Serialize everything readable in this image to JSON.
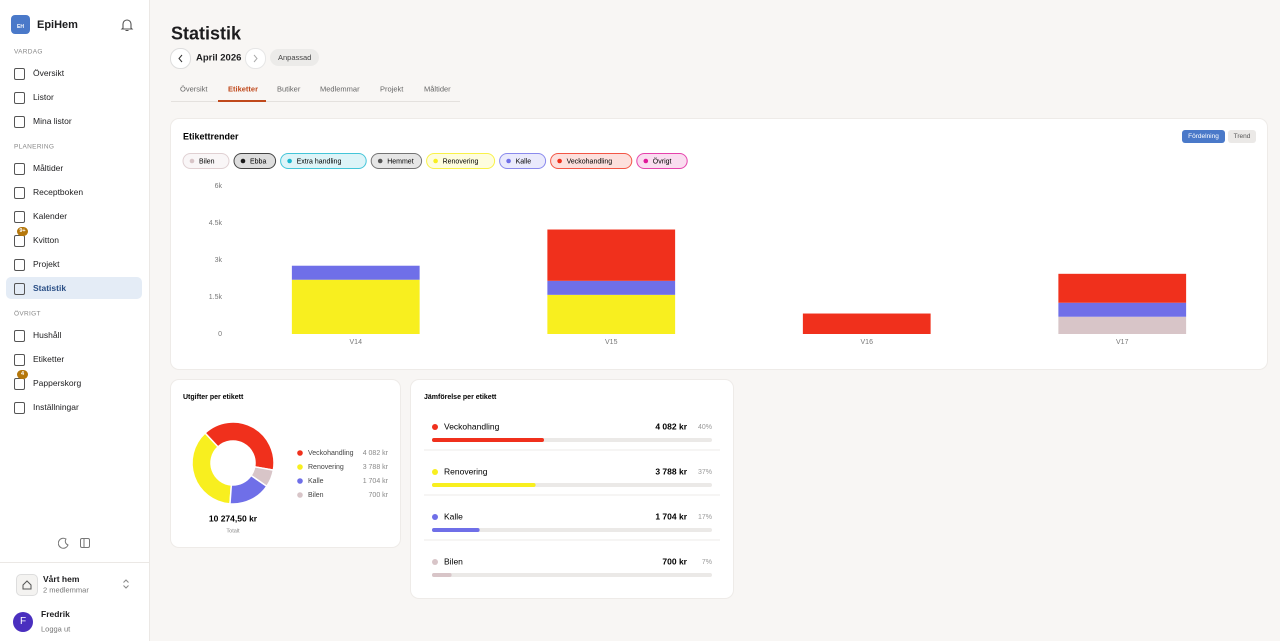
{
  "sidebar": {
    "logo": "EH",
    "app_name": "EpiHem",
    "sections": [
      {
        "title": "VARDAG",
        "items": [
          {
            "label": "Översikt"
          },
          {
            "label": "Listor"
          },
          {
            "label": "Mina listor"
          }
        ]
      },
      {
        "title": "PLANERING",
        "items": [
          {
            "label": "Måltider"
          },
          {
            "label": "Receptboken"
          },
          {
            "label": "Kalender"
          },
          {
            "label": "Kvitton",
            "badge": "9+"
          },
          {
            "label": "Projekt"
          },
          {
            "label": "Statistik",
            "active": true
          }
        ]
      },
      {
        "title": "ÖVRIGT",
        "items": [
          {
            "label": "Hushåll"
          },
          {
            "label": "Etiketter"
          },
          {
            "label": "Papperskorg",
            "badge": "4"
          },
          {
            "label": "Inställningar"
          }
        ]
      }
    ],
    "household": {
      "name": "Vårt hem",
      "members": "2 medlemmar"
    },
    "user": {
      "initial": "F",
      "name": "Fredrik",
      "logout": "Logga ut"
    }
  },
  "header": {
    "title": "Statistik",
    "period": "April 2026",
    "custom": "Anpassad"
  },
  "tabs": {
    "items": [
      "Översikt",
      "Etiketter",
      "Butiker",
      "Medlemmar",
      "Projekt",
      "Måltider"
    ],
    "active": 1
  },
  "chart_data": [
    {
      "type": "bar",
      "stacked": true,
      "title": "Etikettrender",
      "modes": [
        "Fördelning",
        "Trend"
      ],
      "active_mode": 0,
      "categories": [
        "V14",
        "V15",
        "V16",
        "V17"
      ],
      "series": [
        {
          "name": "Bilen",
          "color": "#d8c5c8",
          "values": [
            0,
            0,
            0,
            700
          ]
        },
        {
          "name": "Ebba",
          "color": "#1a1a1a",
          "values": [
            0,
            0,
            0,
            0
          ]
        },
        {
          "name": "Extra handling",
          "color": "#19b8d0",
          "values": [
            0,
            0,
            0,
            0
          ]
        },
        {
          "name": "Hemmet",
          "color": "#555555",
          "values": [
            0,
            0,
            0,
            0
          ]
        },
        {
          "name": "Renovering",
          "color": "#f8ef1f",
          "values": [
            2200,
            1588,
            0,
            0
          ]
        },
        {
          "name": "Kalle",
          "color": "#6f6fe8",
          "values": [
            568,
            568,
            0,
            568
          ]
        },
        {
          "name": "Veckohandling",
          "color": "#f0301c",
          "values": [
            0,
            2080,
            830,
            1172
          ]
        },
        {
          "name": "Övrigt",
          "color": "#e0189a",
          "values": [
            0,
            0,
            0,
            0
          ]
        }
      ],
      "ylim": [
        0,
        6000
      ],
      "yticks": [
        0,
        {
          "value": 1500,
          "label": "1.5k"
        },
        {
          "value": 3000,
          "label": "3k"
        },
        {
          "value": 4500,
          "label": "4.5k"
        },
        {
          "value": 6000,
          "label": "6k"
        }
      ]
    },
    {
      "type": "pie",
      "donut": true,
      "title": "Utgifter per etikett",
      "categories": [
        "Veckohandling",
        "Renovering",
        "Kalle",
        "Bilen"
      ],
      "values": [
        4082,
        3788,
        1704,
        700
      ],
      "value_labels": [
        "4 082 kr",
        "3 788 kr",
        "1 704 kr",
        "700 kr"
      ],
      "colors": [
        "#f0301c",
        "#f8ef1f",
        "#6f6fe8",
        "#d8c5c8"
      ],
      "total_label": "10 274,50 kr",
      "total_caption": "Totalt"
    }
  ],
  "comparison": {
    "title": "Jämförelse per etikett",
    "rows": [
      {
        "name": "Veckohandling",
        "color": "#f0301c",
        "amount": "4 082 kr",
        "share": {
          "value": 40,
          "label": "40%"
        }
      },
      {
        "name": "Renovering",
        "color": "#f8ef1f",
        "amount": "3 788 kr",
        "share": {
          "value": 37,
          "label": "37%"
        }
      },
      {
        "name": "Kalle",
        "color": "#6f6fe8",
        "amount": "1 704 kr",
        "share": {
          "value": 17,
          "label": "17%"
        }
      },
      {
        "name": "Bilen",
        "color": "#d8c5c8",
        "amount": "700 kr",
        "share": {
          "value": 7,
          "label": "7%"
        }
      }
    ]
  }
}
